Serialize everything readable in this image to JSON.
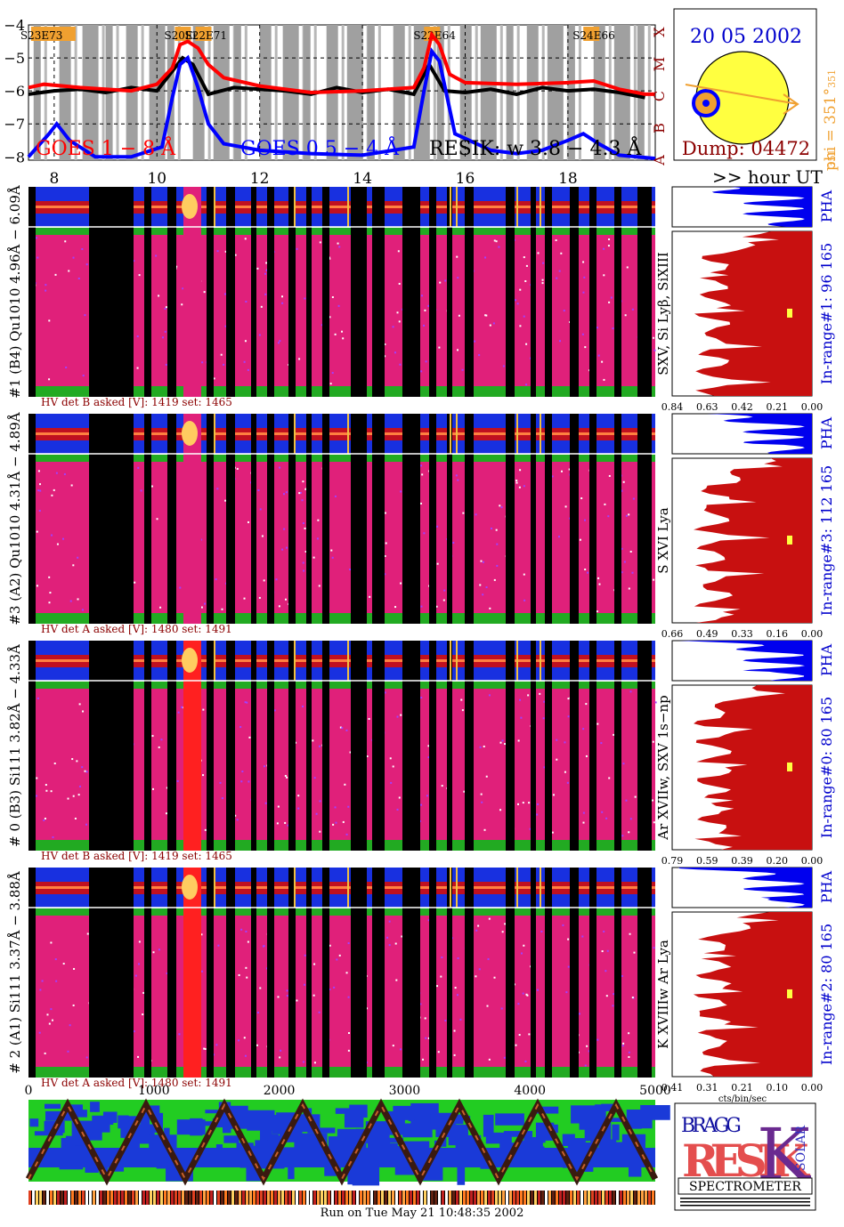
{
  "header": {
    "date": "20 05 2002",
    "phi_label": "phi = 351°",
    "phi_sub": "351",
    "phi_side": "351",
    "dump_label": "Dump: 04472",
    "goes_scale_letters": [
      "X",
      "M",
      "C",
      "B",
      "A"
    ],
    "hour_ut_label": ">> hour UT",
    "flare_labels": [
      "S23E73",
      "S20E67",
      "S22E71",
      "S22E64",
      "S24E66"
    ]
  },
  "chart_data": [
    {
      "type": "line",
      "title": "",
      "series": [
        {
          "name": "GOES 1 − 8 Å",
          "color": "#ff0000"
        },
        {
          "name": "GOES 0.5 − 4 Å",
          "color": "#0000ff"
        },
        {
          "name": "RESIK: w 3.8 − 4.3 Å",
          "color": "#000000"
        }
      ],
      "x_label": "hour UT",
      "x_ticks": [
        "8",
        "10",
        "12",
        "14",
        "16",
        "18"
      ],
      "x_range": [
        7.5,
        19.7
      ],
      "y_ticks": [
        "−4",
        "−5",
        "−6",
        "−7",
        "−8"
      ],
      "y_range": [
        -8.1,
        -4
      ],
      "goes_1_8": [
        [
          7.5,
          -5.9
        ],
        [
          7.8,
          -5.8
        ],
        [
          8.5,
          -5.9
        ],
        [
          9.5,
          -6.0
        ],
        [
          10.0,
          -5.8
        ],
        [
          10.3,
          -5.3
        ],
        [
          10.45,
          -4.6
        ],
        [
          10.6,
          -4.5
        ],
        [
          10.8,
          -4.7
        ],
        [
          11.0,
          -5.2
        ],
        [
          11.3,
          -5.6
        ],
        [
          12,
          -5.85
        ],
        [
          13,
          -6.05
        ],
        [
          14,
          -6.0
        ],
        [
          15.0,
          -5.9
        ],
        [
          15.2,
          -5.3
        ],
        [
          15.35,
          -4.3
        ],
        [
          15.5,
          -4.6
        ],
        [
          15.7,
          -5.5
        ],
        [
          16,
          -5.75
        ],
        [
          17,
          -5.8
        ],
        [
          18,
          -5.75
        ],
        [
          18.5,
          -5.7
        ],
        [
          19,
          -5.95
        ],
        [
          19.5,
          -6.1
        ],
        [
          19.7,
          -6.1
        ]
      ],
      "goes_05_4": [
        [
          7.5,
          -8.0
        ],
        [
          7.9,
          -7.3
        ],
        [
          8.05,
          -7.0
        ],
        [
          8.3,
          -7.5
        ],
        [
          8.8,
          -8.0
        ],
        [
          9.5,
          -8.0
        ],
        [
          10.1,
          -7.7
        ],
        [
          10.3,
          -6.2
        ],
        [
          10.45,
          -5.2
        ],
        [
          10.6,
          -5.0
        ],
        [
          10.8,
          -5.9
        ],
        [
          11.0,
          -7.0
        ],
        [
          11.3,
          -7.6
        ],
        [
          12,
          -7.8
        ],
        [
          13,
          -7.9
        ],
        [
          14,
          -7.95
        ],
        [
          15.0,
          -7.7
        ],
        [
          15.2,
          -6.0
        ],
        [
          15.35,
          -4.8
        ],
        [
          15.5,
          -5.1
        ],
        [
          15.8,
          -7.3
        ],
        [
          16.5,
          -7.8
        ],
        [
          17,
          -7.9
        ],
        [
          17.5,
          -7.8
        ],
        [
          18,
          -7.5
        ],
        [
          18.3,
          -7.3
        ],
        [
          18.6,
          -7.6
        ],
        [
          19,
          -7.95
        ],
        [
          19.7,
          -8.05
        ]
      ],
      "resik_w": [
        [
          7.5,
          -6.1
        ],
        [
          8,
          -6.0
        ],
        [
          8.5,
          -5.95
        ],
        [
          9,
          -6.05
        ],
        [
          9.5,
          -5.9
        ],
        [
          10,
          -6.0
        ],
        [
          10.5,
          -5.0
        ],
        [
          10.7,
          -5.2
        ],
        [
          11,
          -6.1
        ],
        [
          11.5,
          -5.9
        ],
        [
          12,
          -5.95
        ],
        [
          12.5,
          -6.0
        ],
        [
          13,
          -6.1
        ],
        [
          13.5,
          -5.9
        ],
        [
          14,
          -6.05
        ],
        [
          14.5,
          -5.95
        ],
        [
          15,
          -6.1
        ],
        [
          15.3,
          -5.2
        ],
        [
          15.6,
          -6.0
        ],
        [
          16,
          -6.05
        ],
        [
          16.5,
          -5.95
        ],
        [
          17,
          -6.1
        ],
        [
          17.5,
          -5.9
        ],
        [
          18,
          -6.0
        ],
        [
          18.5,
          -5.95
        ],
        [
          19,
          -6.05
        ],
        [
          19.5,
          -6.2
        ]
      ]
    },
    {
      "type": "heatmap",
      "title": "",
      "x_label": "",
      "x_ticks": [
        "0",
        "1000",
        "2000",
        "3000",
        "4000",
        "5000"
      ],
      "x_range": [
        0,
        5000
      ],
      "panels": [
        {
          "channel": "#1 (B4) Qu1010 4.96Å − 6.09Å",
          "lines": "SXV, Si Lyβ, SiXIII",
          "hv": "HV det B asked [V]:  1419 set:  1465",
          "in_range": "In-range#1:  96 165",
          "pha": "PHA",
          "hist_ticks": [
            "0.84",
            "0.63",
            "0.42",
            "0.21",
            "0.00"
          ]
        },
        {
          "channel": "#3 (A2) Qu1010  4.31Å − 4.89Å",
          "lines": "S XVI Lya",
          "hv": "HV det A asked [V]:  1480 set:  1491",
          "in_range": "In-range#3:  112 165",
          "pha": "PHA",
          "hist_ticks": [
            "0.66",
            "0.49",
            "0.33",
            "0.16",
            "0.00"
          ]
        },
        {
          "channel": "# 0 (B3) Si111  3.82Å − 4.33Å",
          "lines": "Ar XVIIw,  SXV 1s−np",
          "hv": "HV det B asked [V]:  1419 set:  1465",
          "in_range": "In-range#0:  80 165",
          "pha": "PHA",
          "hist_ticks": [
            "0.79",
            "0.59",
            "0.39",
            "0.20",
            "0.00"
          ]
        },
        {
          "channel": "# 2 (A1) Si111  3.37Å − 3.88Å",
          "lines": "K XVIIIw  Ar Lya",
          "hv": "HV det A asked [V]:  1480 set:  1491",
          "in_range": "In-range#2:  80 165",
          "pha": "PHA",
          "hist_ticks": [
            "0.41",
            "0.31",
            "0.21",
            "0.10",
            "0.00"
          ]
        }
      ],
      "hist_xlabel": "cts/bin/sec"
    }
  ],
  "logo": {
    "top": "BRAGG",
    "middle": "RESIK",
    "side": "SOLAR",
    "bottom": "SPECTROMETER"
  },
  "footer": {
    "run_label": "Run on Tue May 21 10:48:35 2002"
  },
  "colors": {
    "red": "#ff0000",
    "blue": "#0000ff",
    "magenta": "#e0209a",
    "green": "#22bb22",
    "dark_red": "#8b0000",
    "orange": "#f0a030",
    "yellow": "#ffff40"
  }
}
